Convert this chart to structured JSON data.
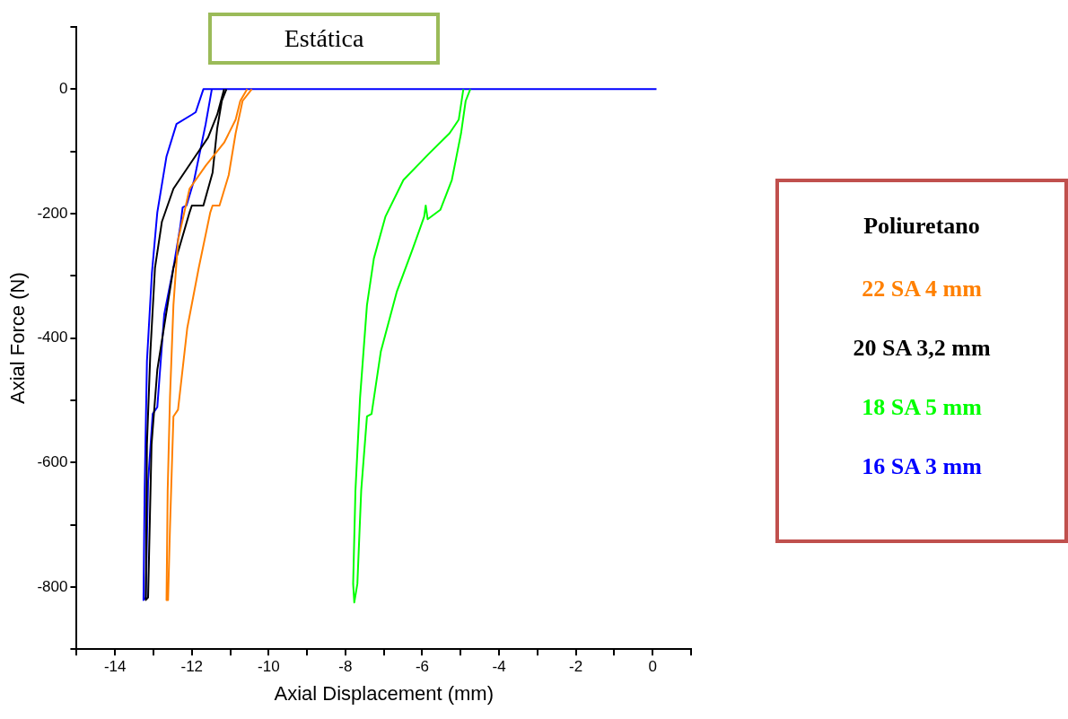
{
  "chart_data": {
    "type": "line",
    "title": "Estática",
    "xlabel": "Axial Displacement (mm)",
    "ylabel": "Axial Force (N)",
    "legend_title": "Poliuretano",
    "legend": "right",
    "grid": false,
    "marker": "none",
    "line_style": "solid",
    "xlim": [
      -15,
      1
    ],
    "ylim": [
      -900,
      100
    ],
    "xticks": [
      {
        "value": -15,
        "label": null
      },
      -14,
      {
        "value": -13,
        "label": null
      },
      -12,
      {
        "value": -11,
        "label": null
      },
      -10,
      {
        "value": -9,
        "label": null
      },
      -8,
      {
        "value": -7,
        "label": null
      },
      -6,
      {
        "value": -5,
        "label": null
      },
      -4,
      {
        "value": -3,
        "label": null
      },
      -2,
      {
        "value": -1,
        "label": null
      },
      0,
      {
        "value": 1,
        "label": null
      }
    ],
    "yticks": [
      {
        "value": -900,
        "label": null
      },
      -800,
      {
        "value": -700,
        "label": null
      },
      -600,
      {
        "value": -500,
        "label": null
      },
      -400,
      {
        "value": -300,
        "label": null
      },
      -200,
      {
        "value": -100,
        "label": null
      },
      0,
      {
        "value": 100,
        "label": null
      }
    ],
    "series": [
      {
        "name": "22 SA 4 mm",
        "color": "#ff8000",
        "x": [
          -10.56,
          -10.74,
          -10.86,
          -11.16,
          -11.64,
          -12.06,
          -12.36,
          -12.48,
          -12.57,
          -12.63,
          -12.66,
          -12.62,
          -12.57,
          -12.48,
          -12.36,
          -12.12,
          -11.82,
          -11.52,
          -11.46,
          -11.28,
          -11.04,
          -10.86,
          -10.68,
          -10.44
        ],
        "values": [
          0,
          -19,
          -49,
          -86,
          -123,
          -160,
          -243,
          -347,
          -496,
          -645,
          -821,
          -821,
          -705,
          -526,
          -515,
          -384,
          -287,
          -198,
          -187,
          -187,
          -138,
          -71,
          -19,
          0
        ]
      },
      {
        "name": "20 SA 3,2 mm",
        "color": "#000000",
        "x": [
          -11.16,
          -11.34,
          -11.58,
          -12.0,
          -12.48,
          -12.78,
          -12.96,
          -13.08,
          -13.17,
          -13.2,
          -13.14,
          -13.05,
          -12.9,
          -12.48,
          -12.06,
          -12.0,
          -11.7,
          -11.46,
          -11.34,
          -11.22,
          -11.1
        ],
        "values": [
          0,
          -41,
          -78,
          -116,
          -160,
          -213,
          -287,
          -422,
          -571,
          -821,
          -817,
          -571,
          -451,
          -287,
          -198,
          -187,
          -187,
          -134,
          -63,
          -19,
          0
        ]
      },
      {
        "name": "18 SA 5 mm",
        "color": "#00ff00",
        "x": [
          -4.93,
          -5.05,
          -5.29,
          -5.83,
          -6.49,
          -6.96,
          -7.26,
          -7.44,
          -7.62,
          -7.74,
          -7.8,
          -7.77,
          -7.69,
          -7.59,
          -7.44,
          -7.32,
          -7.08,
          -6.66,
          -6.25,
          -5.95,
          -5.91,
          -5.86,
          -5.53,
          -5.23,
          -4.99,
          -4.87,
          -4.75
        ],
        "values": [
          0,
          -49,
          -71,
          -104,
          -146,
          -205,
          -272,
          -347,
          -496,
          -645,
          -795,
          -825,
          -795,
          -645,
          -526,
          -522,
          -422,
          -325,
          -257,
          -205,
          -187,
          -209,
          -194,
          -146,
          -71,
          -19,
          0
        ]
      },
      {
        "name": "16 SA 3 mm",
        "color": "#0000ff",
        "x": [
          0.1,
          -11.48,
          -11.64,
          -11.94,
          -12.14,
          -12.24,
          -12.3,
          -12.48,
          -12.72,
          -12.9,
          -13.02,
          -13.14,
          -13.2,
          -13.26,
          -13.23,
          -13.17,
          -13.04,
          -12.9,
          -12.66,
          -12.4,
          -12.0,
          -11.9,
          -11.7,
          -11.48
        ],
        "values": [
          0,
          0,
          -56,
          -146,
          -187,
          -190,
          -220,
          -287,
          -362,
          -511,
          -522,
          -631,
          -817,
          -821,
          -645,
          -437,
          -295,
          -198,
          -108,
          -56,
          -41,
          -37,
          0,
          0
        ]
      }
    ]
  }
}
